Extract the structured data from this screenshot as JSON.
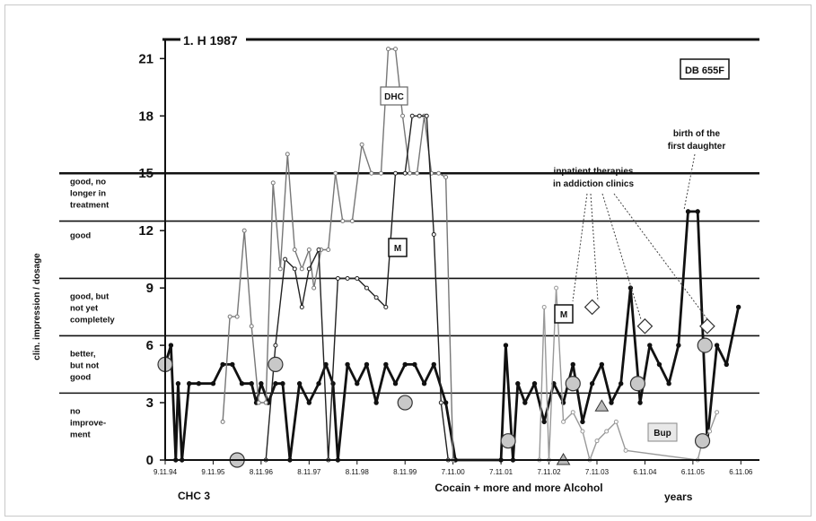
{
  "chart_data": {
    "type": "line",
    "title": "1. H 1987",
    "patient_id": "DB 655F",
    "ylabel": "clin. impression / dosage",
    "xlabel": "Cocain + more and more Alcohol",
    "xlabel2": "years",
    "xlabel_left": "CHC 3",
    "ylim": [
      0,
      22
    ],
    "yticks": [
      "0",
      "3",
      "6",
      "9",
      "12",
      "15",
      "18",
      "21"
    ],
    "x_ticks": [
      "9.11.94",
      "9.11.95",
      "8.11.96",
      "8.11.97",
      "8.11.98",
      "8.11.99",
      "7.11.00",
      "7.11.01",
      "7.11.02",
      "7.11.03",
      "6.11.04",
      "6.11.05",
      "6.11.06"
    ],
    "xlim": [
      0,
      12.2
    ],
    "grid": "horizontal lines at category boundaries",
    "category_lines": [
      3.5,
      6.5,
      9.5,
      12.5,
      15
    ],
    "categories": [
      {
        "label": "no improve-ment",
        "lines": [
          "no",
          "improve-",
          "ment"
        ],
        "y": 2
      },
      {
        "label": "better, but not good",
        "lines": [
          "better,",
          "but not",
          "good"
        ],
        "y": 5
      },
      {
        "label": "good, but not yet completely",
        "lines": [
          "good, but",
          "not yet",
          "completely"
        ],
        "y": 8
      },
      {
        "label": "good",
        "lines": [
          "good"
        ],
        "y": 11.8
      },
      {
        "label": "good, no longer in treatment",
        "lines": [
          "good, no",
          "longer in",
          "treatment"
        ],
        "y": 14
      }
    ],
    "annotations": {
      "inpatient_therapies": [
        "inpatient therapies",
        "in addiction clinics"
      ],
      "birth": [
        "birth of the",
        "first daughter"
      ],
      "dhc": "DHC",
      "m1": "M",
      "m2": "M",
      "bup": "Bup"
    },
    "series": [
      {
        "name": "clinical impression",
        "color": "#111111",
        "x": [
          0.0,
          0.12,
          0.22,
          0.27,
          0.35,
          0.5,
          0.7,
          1.0,
          1.2,
          1.4,
          1.6,
          1.8,
          1.9,
          2.0,
          2.15,
          2.3,
          2.45,
          2.6,
          2.8,
          3.0,
          3.2,
          3.35,
          3.5,
          3.6,
          3.8,
          4.0,
          4.2,
          4.4,
          4.6,
          4.8,
          5.0,
          5.2,
          5.4,
          5.6,
          5.85,
          6.05,
          7.0,
          7.1,
          7.25,
          7.35,
          7.5,
          7.7,
          7.9,
          8.1,
          8.3,
          8.5,
          8.7,
          8.9,
          9.1,
          9.3,
          9.5,
          9.7,
          9.9,
          10.1,
          10.3,
          10.5,
          10.7,
          10.9,
          11.1,
          11.3,
          11.5,
          11.7,
          11.95
        ],
        "y": [
          5,
          6,
          0,
          4,
          0,
          4,
          4,
          4,
          5,
          5,
          4,
          4,
          3,
          4,
          3,
          4,
          4,
          0,
          4,
          3,
          4,
          5,
          4,
          0,
          5,
          4,
          5,
          3,
          5,
          4,
          5,
          5,
          4,
          5,
          3,
          0,
          0,
          6,
          0,
          4,
          3,
          4,
          2,
          4,
          3,
          5,
          2,
          4,
          5,
          3,
          4,
          9,
          3,
          6,
          5,
          4,
          6,
          13,
          13,
          1,
          6,
          5,
          8
        ]
      },
      {
        "name": "DHC",
        "color": "#777777",
        "x": [
          1.2,
          1.35,
          1.5,
          1.65,
          1.8,
          1.95,
          2.1,
          2.25,
          2.4,
          2.55,
          2.7,
          2.85,
          3.0,
          3.1,
          3.25,
          3.4,
          3.55,
          3.7,
          3.9,
          4.1,
          4.3,
          4.5,
          4.65,
          4.8,
          4.95,
          5.1,
          5.25,
          5.4,
          5.55,
          5.7,
          5.85,
          6.0
        ],
        "y": [
          2,
          7.5,
          7.5,
          12,
          7,
          3,
          3,
          14.5,
          10,
          16,
          11,
          10,
          11,
          9,
          11,
          11,
          15,
          12.5,
          12.5,
          16.5,
          15,
          15,
          21.5,
          21.5,
          18,
          15,
          15,
          18,
          15,
          15,
          14.8,
          0
        ]
      },
      {
        "name": "M",
        "color": "#222222",
        "x": [
          2.1,
          2.3,
          2.5,
          2.7,
          2.85,
          3.0,
          3.2,
          3.4,
          3.6,
          3.8,
          4.0,
          4.2,
          4.4,
          4.6,
          4.8,
          5.0,
          5.15,
          5.3,
          5.45,
          5.6,
          5.75,
          5.9
        ],
        "y": [
          0,
          6,
          10.5,
          10,
          8,
          10,
          11,
          0,
          9.5,
          9.5,
          9.5,
          9,
          8.5,
          8,
          15,
          15,
          18,
          18,
          18,
          11.8,
          3,
          0
        ]
      },
      {
        "name": "Bup",
        "color": "#999999",
        "x": [
          7.8,
          7.9,
          8.0,
          8.15,
          8.3,
          8.5,
          8.7,
          8.85,
          9.0,
          9.2,
          9.4,
          9.6,
          11.1,
          11.2,
          11.35,
          11.5
        ],
        "y": [
          0,
          8,
          0,
          9,
          2,
          2.5,
          1.5,
          0,
          1,
          1.5,
          2,
          0.5,
          0,
          1,
          1.5,
          2.5
        ]
      }
    ],
    "circle_markers": {
      "x": [
        0.0,
        1.5,
        2.3,
        5.0,
        7.15,
        8.5,
        9.85,
        11.2,
        11.25
      ],
      "y": [
        5,
        0,
        5,
        3,
        1,
        4,
        4,
        1,
        6
      ]
    },
    "diamond_markers": {
      "x": [
        8.9,
        10.0,
        11.3
      ],
      "y": [
        8,
        7,
        7
      ]
    },
    "triangle_markers": {
      "x": [
        8.3,
        9.1
      ],
      "y": [
        0,
        2.8
      ]
    }
  }
}
